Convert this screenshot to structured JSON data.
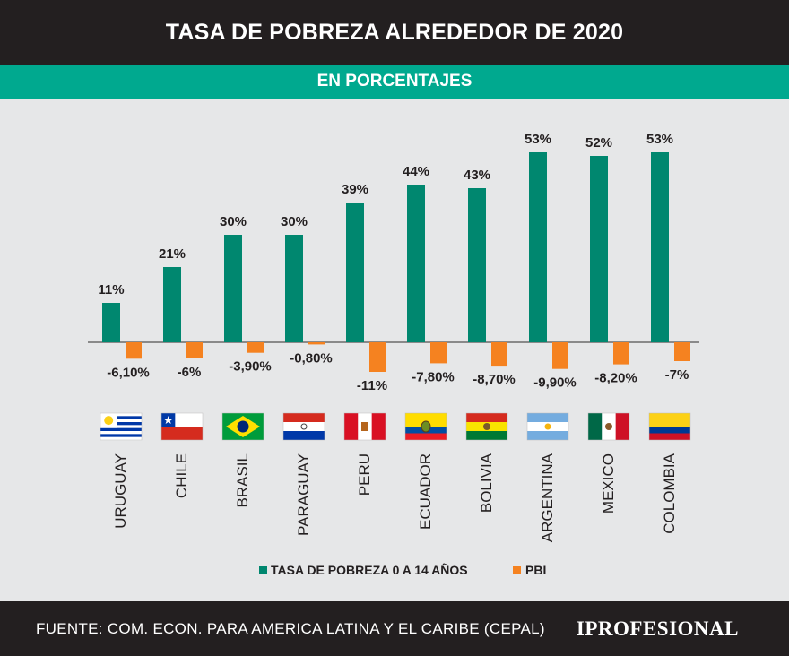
{
  "header": {
    "title": "TASA DE POBREZA ALREDEDOR DE 2020"
  },
  "subheader": {
    "title": "EN PORCENTAJES"
  },
  "chart_data": {
    "type": "bar",
    "categories": [
      "URUGUAY",
      "CHILE",
      "BRASIL",
      "PARAGUAY",
      "PERU",
      "ECUADOR",
      "BOLIVIA",
      "ARGENTINA",
      "MEXICO",
      "COLOMBIA"
    ],
    "series": [
      {
        "name": "TASA DE POBREZA 0 A 14 AÑOS",
        "color": "#00876f",
        "values": [
          11,
          21,
          30,
          30,
          39,
          44,
          43,
          53,
          52,
          53
        ],
        "labels": [
          "11%",
          "21%",
          "30%",
          "30%",
          "39%",
          "44%",
          "43%",
          "53%",
          "52%",
          "53%"
        ]
      },
      {
        "name": "PBI",
        "color": "#f58220",
        "values": [
          -6.1,
          -6,
          -3.9,
          -0.8,
          -11,
          -7.8,
          -8.7,
          -9.9,
          -8.2,
          -7
        ],
        "labels": [
          "-6,10%",
          "-6%",
          "-3,90%",
          "-0,80%",
          "-11%",
          "-7,80%",
          "-8,70%",
          "-9,90%",
          "-8,20%",
          "-7%"
        ]
      }
    ],
    "flags": [
      "uruguay-flag",
      "chile-flag",
      "brasil-flag",
      "paraguay-flag",
      "peru-flag",
      "ecuador-flag",
      "bolivia-flag",
      "argentina-flag",
      "mexico-flag",
      "colombia-flag"
    ],
    "legend_position": "bottom-center",
    "grid": false
  },
  "footer": {
    "source": "FUENTE: COM. ECON. PARA AMERICA LATINA Y EL CARIBE (CEPAL)",
    "brand": "IPROFESIONAL"
  }
}
